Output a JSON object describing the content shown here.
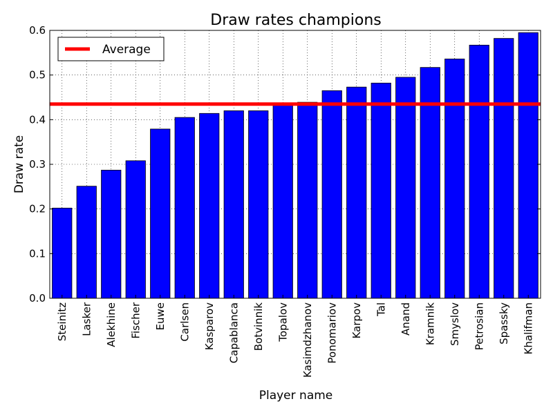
{
  "chart_data": {
    "type": "bar",
    "title": "Draw rates champions",
    "xlabel": "Player name",
    "ylabel": "Draw rate",
    "ylim": [
      0,
      0.6
    ],
    "yticks": [
      "0.0",
      "0.1",
      "0.2",
      "0.3",
      "0.4",
      "0.5",
      "0.6"
    ],
    "grid": true,
    "legend": {
      "placement": "top-left",
      "entries": [
        "Average"
      ]
    },
    "categories": [
      "Steinitz",
      "Lasker",
      "Alekhine",
      "Fischer",
      "Euwe",
      "Carlsen",
      "Kasparov",
      "Capablanca",
      "Botvinnik",
      "Topalov",
      "Kasimdzhanov",
      "Ponomariov",
      "Karpov",
      "Tal",
      "Anand",
      "Kramnik",
      "Smyslov",
      "Petrosian",
      "Spassky",
      "Khalifman"
    ],
    "values": [
      0.202,
      0.251,
      0.287,
      0.308,
      0.379,
      0.405,
      0.414,
      0.42,
      0.42,
      0.435,
      0.439,
      0.465,
      0.473,
      0.482,
      0.495,
      0.517,
      0.536,
      0.567,
      0.582,
      0.595
    ],
    "average": {
      "name": "Average",
      "value": 0.435
    },
    "colors": {
      "bar": "#0000ff",
      "average_line": "#ff0000"
    }
  }
}
